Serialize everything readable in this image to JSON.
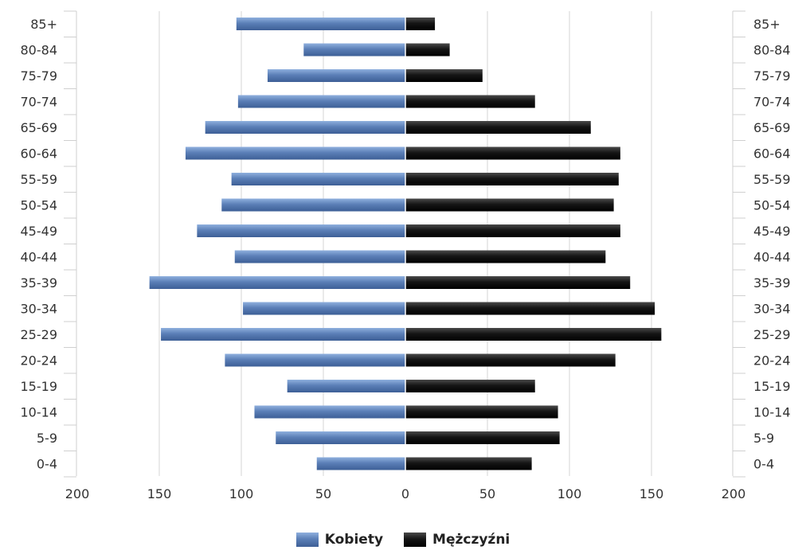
{
  "chart_data": {
    "type": "bar",
    "orientation": "horizontal",
    "categories": [
      "85+",
      "80-84",
      "75-79",
      "70-74",
      "65-69",
      "60-64",
      "55-59",
      "50-54",
      "45-49",
      "40-44",
      "35-39",
      "30-34",
      "25-29",
      "20-24",
      "15-19",
      "10-14",
      "5-9",
      "0-4"
    ],
    "series": [
      {
        "name": "Kobiety",
        "side": "left",
        "color": "#5b7fb7",
        "values": [
          103,
          62,
          84,
          102,
          122,
          134,
          106,
          112,
          127,
          104,
          156,
          99,
          149,
          110,
          72,
          92,
          79,
          54
        ]
      },
      {
        "name": "Mężczyźni",
        "side": "right",
        "color": "#151515",
        "values": [
          18,
          27,
          47,
          79,
          113,
          131,
          130,
          127,
          131,
          122,
          137,
          152,
          156,
          128,
          79,
          93,
          94,
          77
        ]
      }
    ],
    "x_ticks": [
      "200",
      "150",
      "100",
      "50",
      "0",
      "50",
      "100",
      "150",
      "200"
    ],
    "xlim": [
      -200,
      200
    ],
    "grid": true,
    "legend_position": "bottom"
  },
  "legend": {
    "items": [
      {
        "label": "Kobiety",
        "color": "#5b7fb7"
      },
      {
        "label": "Mężczyźni",
        "color": "#151515"
      }
    ]
  }
}
